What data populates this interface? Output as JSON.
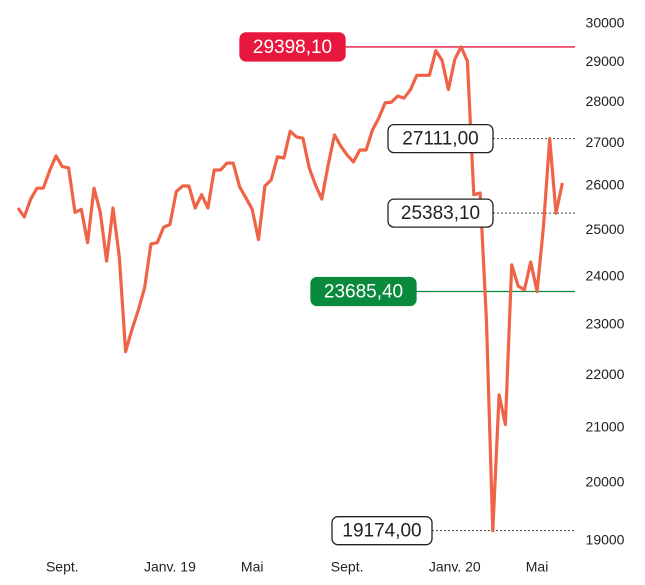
{
  "chart_data": {
    "type": "line",
    "categories": [
      null,
      null,
      null,
      null,
      null,
      null,
      null,
      "Sept.",
      null,
      null,
      null,
      null,
      null,
      null,
      null,
      null,
      null,
      null,
      null,
      null,
      null,
      null,
      null,
      null,
      "Janv. 19",
      null,
      null,
      null,
      null,
      null,
      null,
      null,
      null,
      null,
      null,
      null,
      null,
      "Mai",
      null,
      null,
      null,
      null,
      null,
      null,
      null,
      null,
      null,
      null,
      null,
      null,
      null,
      null,
      "Sept.",
      null,
      null,
      null,
      null,
      null,
      null,
      null,
      null,
      null,
      null,
      null,
      null,
      null,
      null,
      null,
      null,
      "Janv. 20",
      null,
      null,
      null,
      null,
      null,
      null,
      null,
      null,
      null,
      null,
      null,
      null,
      "Mai",
      null,
      null,
      null,
      null
    ],
    "values": [
      25500,
      25300,
      25700,
      25950,
      25950,
      26350,
      26700,
      26450,
      26420,
      25400,
      25470,
      24730,
      25950,
      25400,
      24330,
      25500,
      24420,
      22460,
      22900,
      23300,
      23760,
      24700,
      24730,
      25070,
      25130,
      25870,
      26000,
      26000,
      25500,
      25800,
      25500,
      26370,
      26370,
      26530,
      26530,
      25980,
      25730,
      25470,
      24800,
      26000,
      26140,
      26680,
      26650,
      27290,
      27150,
      27120,
      26420,
      26020,
      25700,
      26490,
      27200,
      26930,
      26720,
      26560,
      26840,
      26840,
      27320,
      27610,
      27980,
      28000,
      28150,
      28100,
      28310,
      28670,
      28670,
      28670,
      29300,
      29050,
      28310,
      29080,
      29398.1,
      29030,
      25800,
      25840,
      23100,
      19174,
      21620,
      21060,
      24250,
      23800,
      23720,
      24310,
      23685.4,
      25070,
      27111,
      25383.1,
      26070
    ],
    "color": "#ef6347",
    "yscale": "log",
    "ylim": [
      19000,
      30000
    ],
    "yticks": [
      19000,
      20000,
      21000,
      22000,
      23000,
      24000,
      25000,
      26000,
      27000,
      28000,
      29000,
      30000
    ],
    "annotations": [
      {
        "value": 29398.1,
        "label": "29398,10",
        "color": "#e8173d"
      },
      {
        "value": 27111,
        "label": "27111,00"
      },
      {
        "value": 25383.1,
        "label": "25383,10"
      },
      {
        "value": 23685.4,
        "label": "23685,40",
        "color": "#0a8a3c"
      },
      {
        "value": 19174,
        "label": "19174,00"
      }
    ]
  }
}
